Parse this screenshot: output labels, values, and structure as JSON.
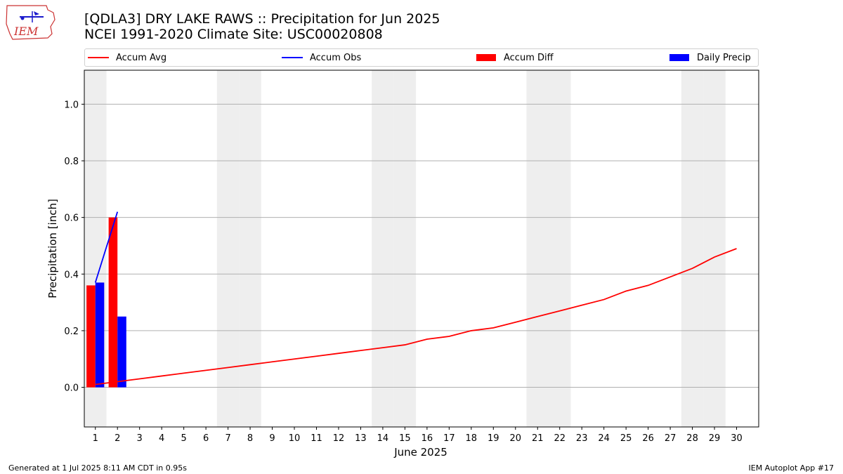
{
  "header": {
    "title_line1": "[QDLA3] DRY LAKE RAWS :: Precipitation for Jun 2025",
    "title_line2": "NCEI 1991-2020 Climate Site: USC00020808"
  },
  "logo": {
    "text": "IEM",
    "icon": "iem-logo-icon"
  },
  "footer": {
    "left": "Generated at 1 Jul 2025 8:11 AM CDT in 0.95s",
    "right": "IEM Autoplot App #17"
  },
  "colors": {
    "avg": "#ff0000",
    "obs": "#0000ff",
    "diff": "#ff0000",
    "daily": "#0000ff",
    "weekend_band": "#eeeeee",
    "grid": "#b0b0b0"
  },
  "chart_data": {
    "type": "bar",
    "xlabel": "June 2025",
    "ylabel": "Precipitation [inch]",
    "ylim": [
      -0.14,
      1.12
    ],
    "xlim": [
      0.5,
      31.0
    ],
    "yticks": [
      0.0,
      0.2,
      0.4,
      0.6,
      0.8,
      1.0
    ],
    "ytick_labels": [
      "0.0",
      "0.2",
      "0.4",
      "0.6",
      "0.8",
      "1.0"
    ],
    "x": [
      1,
      2,
      3,
      4,
      5,
      6,
      7,
      8,
      9,
      10,
      11,
      12,
      13,
      14,
      15,
      16,
      17,
      18,
      19,
      20,
      21,
      22,
      23,
      24,
      25,
      26,
      27,
      28,
      29,
      30
    ],
    "xtick_labels": [
      "1",
      "2",
      "3",
      "4",
      "5",
      "6",
      "7",
      "8",
      "9",
      "10",
      "11",
      "12",
      "13",
      "14",
      "15",
      "16",
      "17",
      "18",
      "19",
      "20",
      "21",
      "22",
      "23",
      "24",
      "25",
      "26",
      "27",
      "28",
      "29",
      "30"
    ],
    "grid": "horizontal",
    "legend_position": "top",
    "weekend_days": [
      1,
      7,
      8,
      14,
      15,
      21,
      22,
      28,
      29
    ],
    "series": [
      {
        "name": "Accum Avg",
        "kind": "line",
        "x": [
          1,
          2,
          3,
          4,
          5,
          6,
          7,
          8,
          9,
          10,
          11,
          12,
          13,
          14,
          15,
          16,
          17,
          18,
          19,
          20,
          21,
          22,
          23,
          24,
          25,
          26,
          27,
          28,
          29,
          30
        ],
        "values": [
          0.01,
          0.02,
          0.03,
          0.04,
          0.05,
          0.06,
          0.07,
          0.08,
          0.09,
          0.1,
          0.11,
          0.12,
          0.13,
          0.14,
          0.15,
          0.17,
          0.18,
          0.2,
          0.21,
          0.23,
          0.25,
          0.27,
          0.29,
          0.31,
          0.34,
          0.36,
          0.39,
          0.42,
          0.46,
          0.49
        ]
      },
      {
        "name": "Accum Obs",
        "kind": "line",
        "x": [
          1,
          2
        ],
        "values": [
          0.37,
          0.62
        ]
      },
      {
        "name": "Accum Diff",
        "kind": "bar",
        "x": [
          1,
          2
        ],
        "values": [
          0.36,
          0.6
        ]
      },
      {
        "name": "Daily Precip",
        "kind": "bar",
        "x": [
          1,
          2
        ],
        "values": [
          0.37,
          0.25
        ]
      }
    ]
  }
}
